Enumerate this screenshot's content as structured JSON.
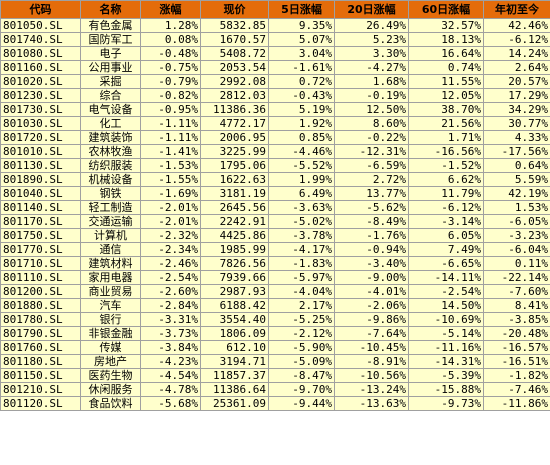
{
  "colors": {
    "header_bg": "#e46c0a",
    "cell_bg": "#ffffcc",
    "grid": "#a0a0a0"
  },
  "headers": [
    "代码",
    "名称",
    "涨幅",
    "现价",
    "5日涨幅",
    "20日涨幅",
    "60日涨幅",
    "年初至今"
  ],
  "rows": [
    [
      "801050.SL",
      "有色金属",
      "1.28%",
      "5832.85",
      "9.35%",
      "26.49%",
      "32.57%",
      "42.46%"
    ],
    [
      "801740.SL",
      "国防军工",
      "0.08%",
      "1670.57",
      "5.07%",
      "5.23%",
      "18.13%",
      "-6.12%"
    ],
    [
      "801080.SL",
      "电子",
      "-0.48%",
      "5408.72",
      "3.04%",
      "3.30%",
      "16.64%",
      "14.24%"
    ],
    [
      "801160.SL",
      "公用事业",
      "-0.75%",
      "2053.54",
      "-1.61%",
      "-4.27%",
      "0.74%",
      "2.64%"
    ],
    [
      "801020.SL",
      "采掘",
      "-0.79%",
      "2992.08",
      "0.72%",
      "1.68%",
      "11.55%",
      "20.57%"
    ],
    [
      "801230.SL",
      "综合",
      "-0.82%",
      "2812.03",
      "-0.43%",
      "-0.19%",
      "12.05%",
      "17.29%"
    ],
    [
      "801730.SL",
      "电气设备",
      "-0.95%",
      "11386.36",
      "5.19%",
      "12.50%",
      "38.70%",
      "34.29%"
    ],
    [
      "801030.SL",
      "化工",
      "-1.11%",
      "4772.17",
      "1.92%",
      "8.60%",
      "21.56%",
      "30.77%"
    ],
    [
      "801720.SL",
      "建筑装饰",
      "-1.11%",
      "2006.95",
      "0.85%",
      "-0.22%",
      "1.71%",
      "4.33%"
    ],
    [
      "801010.SL",
      "农林牧渔",
      "-1.41%",
      "3225.99",
      "-4.46%",
      "-12.31%",
      "-16.56%",
      "-17.56%"
    ],
    [
      "801130.SL",
      "纺织服装",
      "-1.53%",
      "1795.06",
      "-5.52%",
      "-6.59%",
      "-1.52%",
      "0.64%"
    ],
    [
      "801890.SL",
      "机械设备",
      "-1.55%",
      "1622.63",
      "1.99%",
      "2.72%",
      "6.62%",
      "5.59%"
    ],
    [
      "801040.SL",
      "钢铁",
      "-1.69%",
      "3181.19",
      "6.49%",
      "13.77%",
      "11.79%",
      "42.19%"
    ],
    [
      "801140.SL",
      "轻工制造",
      "-2.01%",
      "2645.56",
      "-3.63%",
      "-5.62%",
      "-6.12%",
      "1.53%"
    ],
    [
      "801170.SL",
      "交通运输",
      "-2.01%",
      "2242.91",
      "-5.02%",
      "-8.49%",
      "-3.14%",
      "-6.05%"
    ],
    [
      "801750.SL",
      "计算机",
      "-2.32%",
      "4425.86",
      "-3.78%",
      "-1.76%",
      "6.05%",
      "-3.23%"
    ],
    [
      "801770.SL",
      "通信",
      "-2.34%",
      "1985.99",
      "-4.17%",
      "-0.94%",
      "7.49%",
      "-6.04%"
    ],
    [
      "801710.SL",
      "建筑材料",
      "-2.46%",
      "7826.56",
      "-1.83%",
      "-3.40%",
      "-6.65%",
      "0.11%"
    ],
    [
      "801110.SL",
      "家用电器",
      "-2.54%",
      "7939.66",
      "-5.97%",
      "-9.00%",
      "-14.11%",
      "-22.14%"
    ],
    [
      "801200.SL",
      "商业贸易",
      "-2.60%",
      "2987.93",
      "-4.04%",
      "-4.01%",
      "-2.54%",
      "-7.60%"
    ],
    [
      "801880.SL",
      "汽车",
      "-2.84%",
      "6188.42",
      "2.17%",
      "-2.06%",
      "14.50%",
      "8.41%"
    ],
    [
      "801780.SL",
      "银行",
      "-3.31%",
      "3554.40",
      "-5.25%",
      "-9.86%",
      "-10.69%",
      "-3.85%"
    ],
    [
      "801790.SL",
      "非银金融",
      "-3.73%",
      "1806.09",
      "-2.12%",
      "-7.64%",
      "-5.14%",
      "-20.48%"
    ],
    [
      "801760.SL",
      "传媒",
      "-3.84%",
      "612.10",
      "-5.90%",
      "-10.45%",
      "-11.16%",
      "-16.57%"
    ],
    [
      "801180.SL",
      "房地产",
      "-4.23%",
      "3194.71",
      "-5.09%",
      "-8.91%",
      "-14.31%",
      "-16.51%"
    ],
    [
      "801150.SL",
      "医药生物",
      "-4.54%",
      "11857.37",
      "-8.47%",
      "-10.56%",
      "-5.39%",
      "-1.82%"
    ],
    [
      "801210.SL",
      "休闲服务",
      "-4.78%",
      "11386.64",
      "-9.70%",
      "-13.24%",
      "-15.88%",
      "-7.46%"
    ],
    [
      "801120.SL",
      "食品饮料",
      "-5.68%",
      "25361.09",
      "-9.44%",
      "-13.63%",
      "-9.73%",
      "-11.86%"
    ]
  ]
}
